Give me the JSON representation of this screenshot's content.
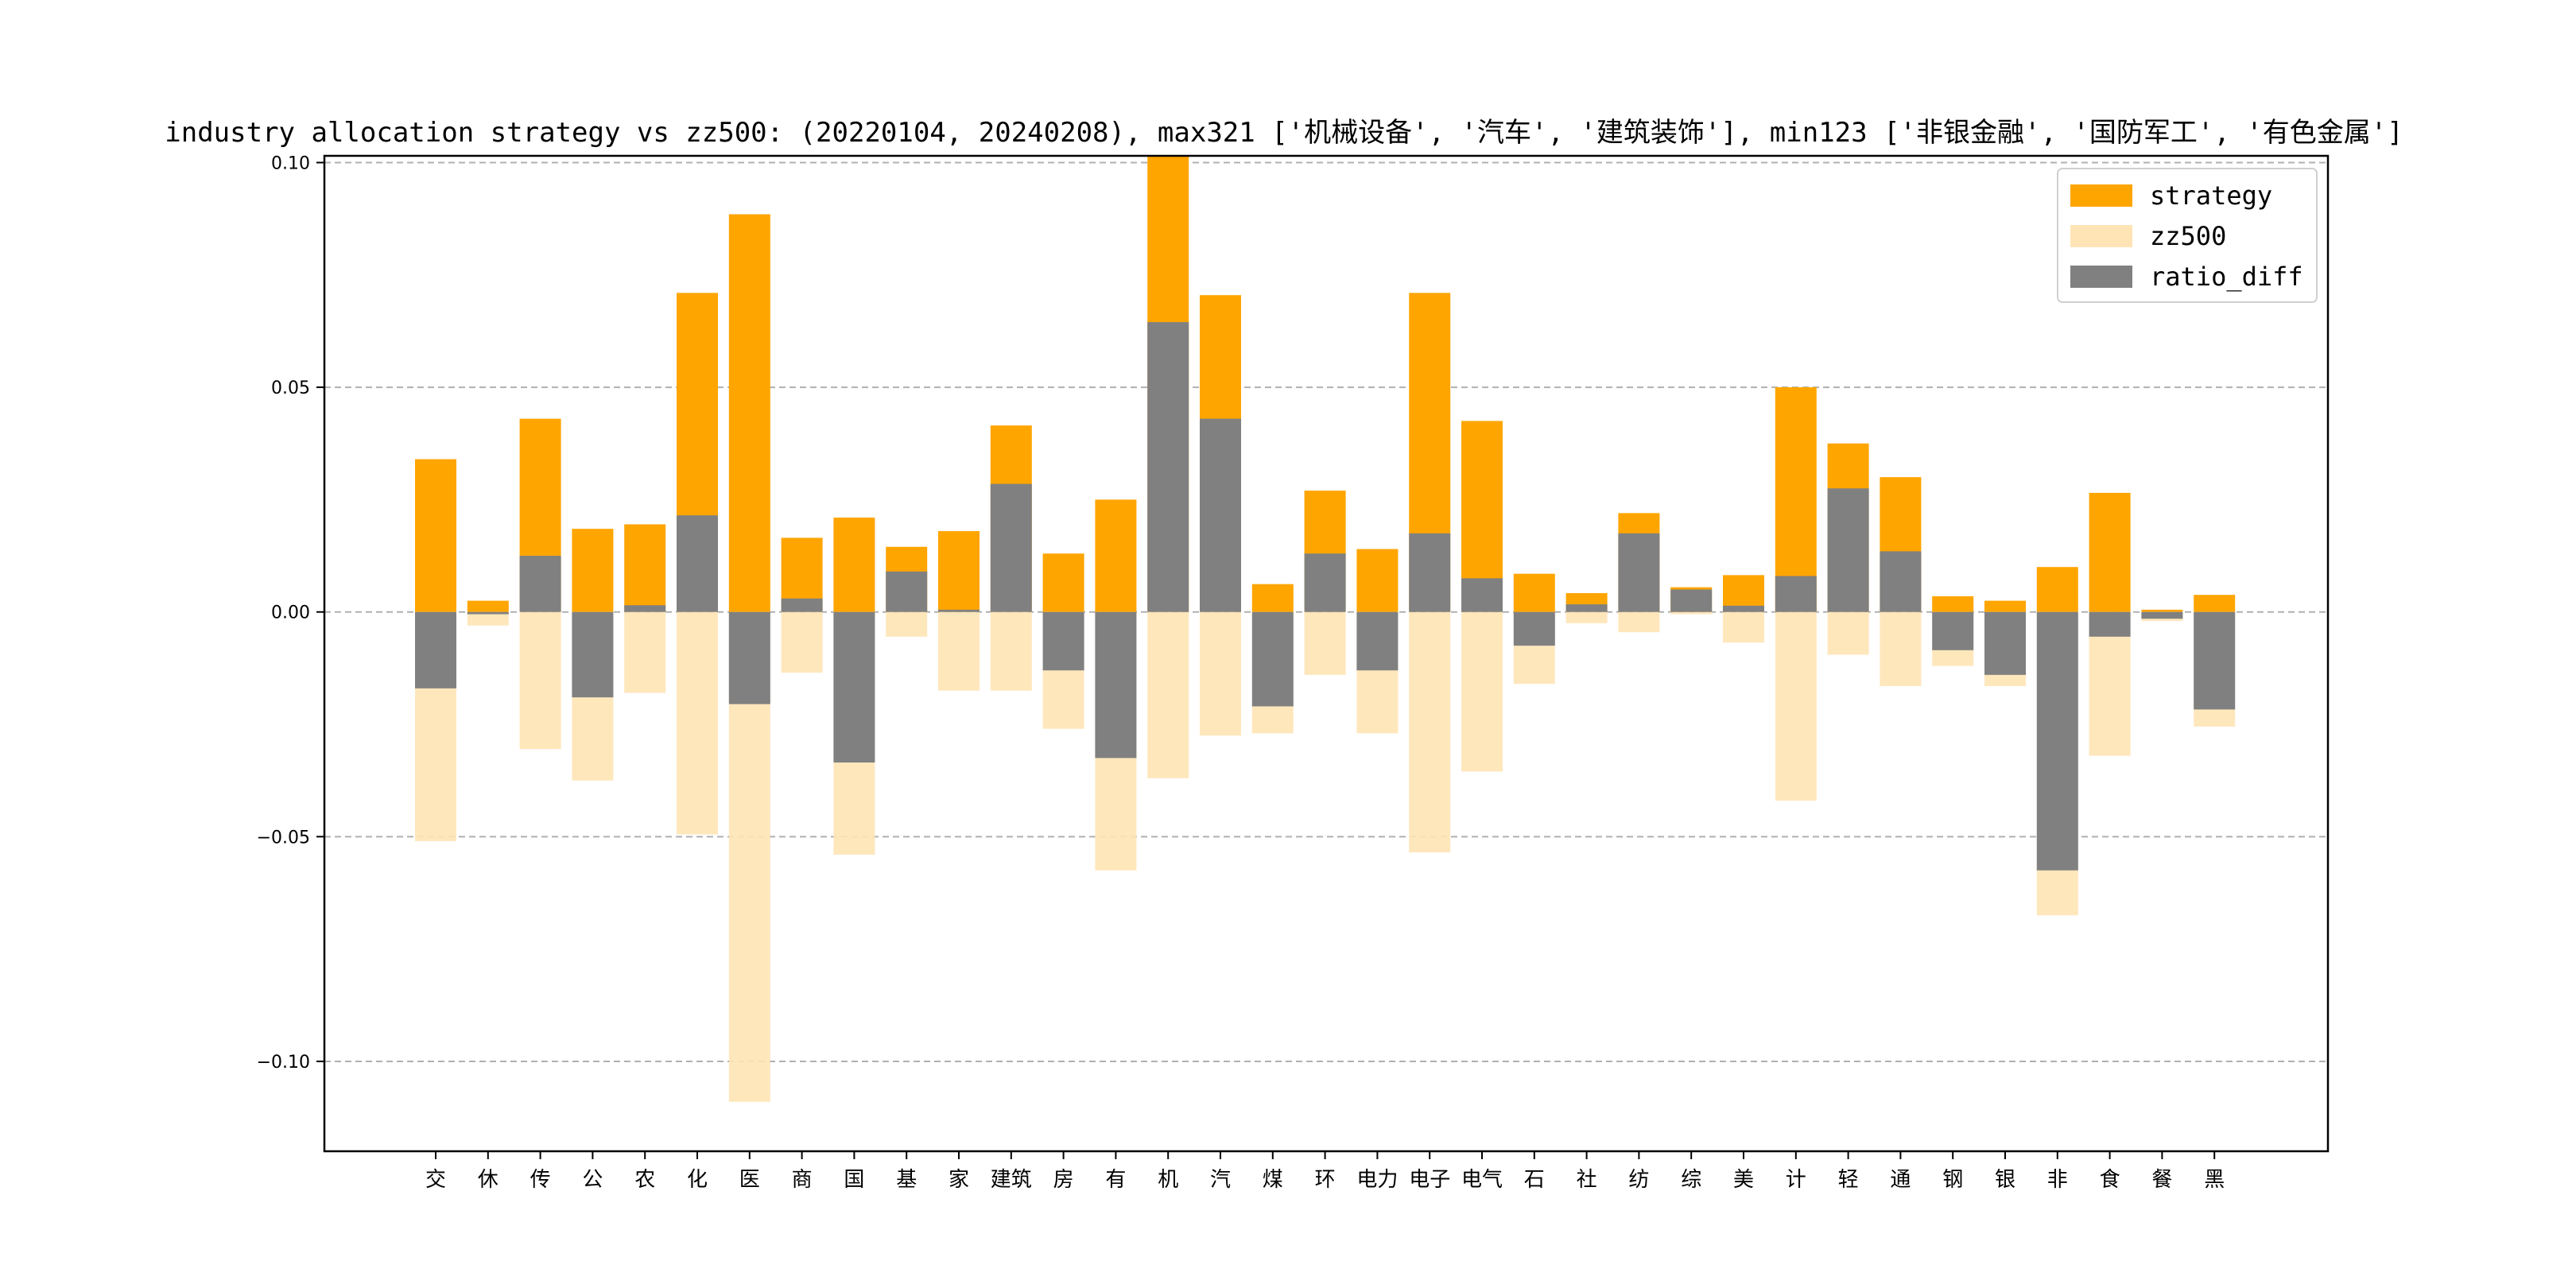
{
  "chart_data": {
    "type": "bar",
    "title": "industry allocation strategy vs zz500: (20220104, 20240208), max321 ['机械设备', '汽车', '建筑装饰'], min123 ['非银金融', '国防军工', '有色金属']",
    "categories": [
      "交",
      "休",
      "传",
      "公",
      "农",
      "化",
      "医",
      "商",
      "国",
      "基",
      "家",
      "建筑",
      "房",
      "有",
      "机",
      "汽",
      "煤",
      "环",
      "电力",
      "电子",
      "电气",
      "石",
      "社",
      "纺",
      "综",
      "美",
      "计",
      "轻",
      "通",
      "钢",
      "银",
      "非",
      "食",
      "餐",
      "黑"
    ],
    "series": [
      {
        "name": "strategy",
        "color": "#FFA500",
        "values": [
          0.034,
          0.0025,
          0.043,
          0.0185,
          0.0195,
          0.071,
          0.0885,
          0.0165,
          0.021,
          0.0145,
          0.018,
          0.0415,
          0.013,
          0.025,
          0.1015,
          0.0705,
          0.0062,
          0.027,
          0.014,
          0.071,
          0.0425,
          0.0085,
          0.0042,
          0.022,
          0.0055,
          0.0082,
          0.05,
          0.0375,
          0.03,
          0.0035,
          0.0025,
          0.01,
          0.0265,
          0.0005,
          0.0038
        ]
      },
      {
        "name": "zz500",
        "color": "#FFE4B5",
        "values": [
          -0.051,
          -0.003,
          -0.0305,
          -0.0375,
          -0.018,
          -0.0495,
          -0.109,
          -0.0135,
          -0.054,
          -0.0055,
          -0.0175,
          -0.0175,
          -0.026,
          -0.0575,
          -0.037,
          -0.0275,
          -0.027,
          -0.014,
          -0.027,
          -0.0535,
          -0.0355,
          -0.016,
          -0.0025,
          -0.0045,
          -0.0005,
          -0.0068,
          -0.042,
          -0.0095,
          -0.0165,
          -0.012,
          -0.0165,
          -0.0675,
          -0.032,
          -0.002,
          -0.0255
        ]
      },
      {
        "name": "ratio_diff",
        "color": "#808080",
        "values": [
          -0.017,
          -0.0005,
          0.0125,
          -0.019,
          0.0015,
          0.0215,
          -0.0205,
          0.003,
          -0.0335,
          0.009,
          0.0005,
          0.0285,
          -0.013,
          -0.0325,
          0.0645,
          0.043,
          -0.021,
          0.013,
          -0.013,
          0.0175,
          0.0075,
          -0.0075,
          0.0017,
          0.0175,
          0.005,
          0.0014,
          0.008,
          0.0275,
          0.0135,
          -0.0085,
          -0.014,
          -0.0575,
          -0.0055,
          -0.0015,
          -0.0217
        ]
      }
    ],
    "ylim": [
      -0.12,
      0.1015
    ],
    "yticks": [
      0.1,
      0.05,
      0.0,
      -0.05,
      -0.1
    ],
    "ytick_labels": [
      "0.10",
      "0.05",
      "0.00",
      "−0.05",
      "−0.10"
    ],
    "grid": "y-dashed",
    "legend": "top-right",
    "xlabel": "",
    "ylabel": ""
  }
}
